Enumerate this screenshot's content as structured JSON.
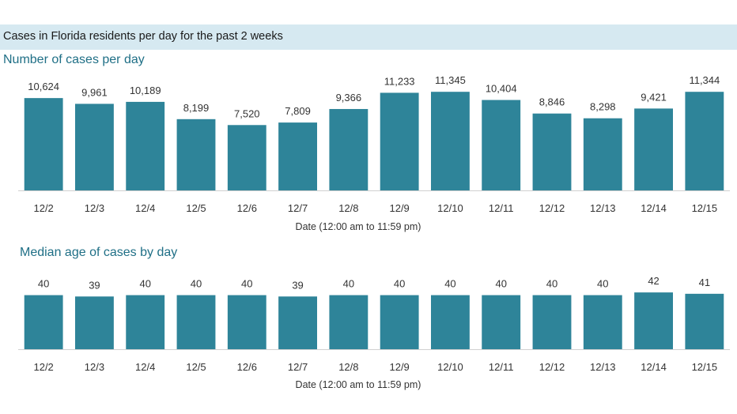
{
  "header": {
    "title": "Cases in Florida residents per day for the past 2 weeks"
  },
  "colors": {
    "bar": "#2e8499",
    "header_band": "#d6e9f1",
    "subtitle": "#1f6f86"
  },
  "chart_data": [
    {
      "type": "bar",
      "title": "Number of cases per day",
      "xlabel": "Date (12:00 am to 11:59 pm)",
      "ylabel": "",
      "categories": [
        "12/2",
        "12/3",
        "12/4",
        "12/5",
        "12/6",
        "12/7",
        "12/8",
        "12/9",
        "12/10",
        "12/11",
        "12/12",
        "12/13",
        "12/14",
        "12/15"
      ],
      "values": [
        10624,
        9961,
        10189,
        8199,
        7520,
        7809,
        9366,
        11233,
        11345,
        10404,
        8846,
        8298,
        9421,
        11344
      ],
      "value_labels": [
        "10,624",
        "9,961",
        "10,189",
        "8,199",
        "7,520",
        "7,809",
        "9,366",
        "11,233",
        "11,345",
        "10,404",
        "8,846",
        "8,298",
        "9,421",
        "11,344"
      ],
      "ylim": [
        0,
        12000
      ],
      "grid": false
    },
    {
      "type": "bar",
      "title": "Median age of cases by day",
      "xlabel": "Date (12:00 am to 11:59 pm)",
      "ylabel": "",
      "categories": [
        "12/2",
        "12/3",
        "12/4",
        "12/5",
        "12/6",
        "12/7",
        "12/8",
        "12/9",
        "12/10",
        "12/11",
        "12/12",
        "12/13",
        "12/14",
        "12/15"
      ],
      "values": [
        40,
        39,
        40,
        40,
        40,
        39,
        40,
        40,
        40,
        40,
        40,
        40,
        42,
        41
      ],
      "value_labels": [
        "40",
        "39",
        "40",
        "40",
        "40",
        "39",
        "40",
        "40",
        "40",
        "40",
        "40",
        "40",
        "42",
        "41"
      ],
      "ylim": [
        0,
        45
      ],
      "grid": false
    }
  ]
}
